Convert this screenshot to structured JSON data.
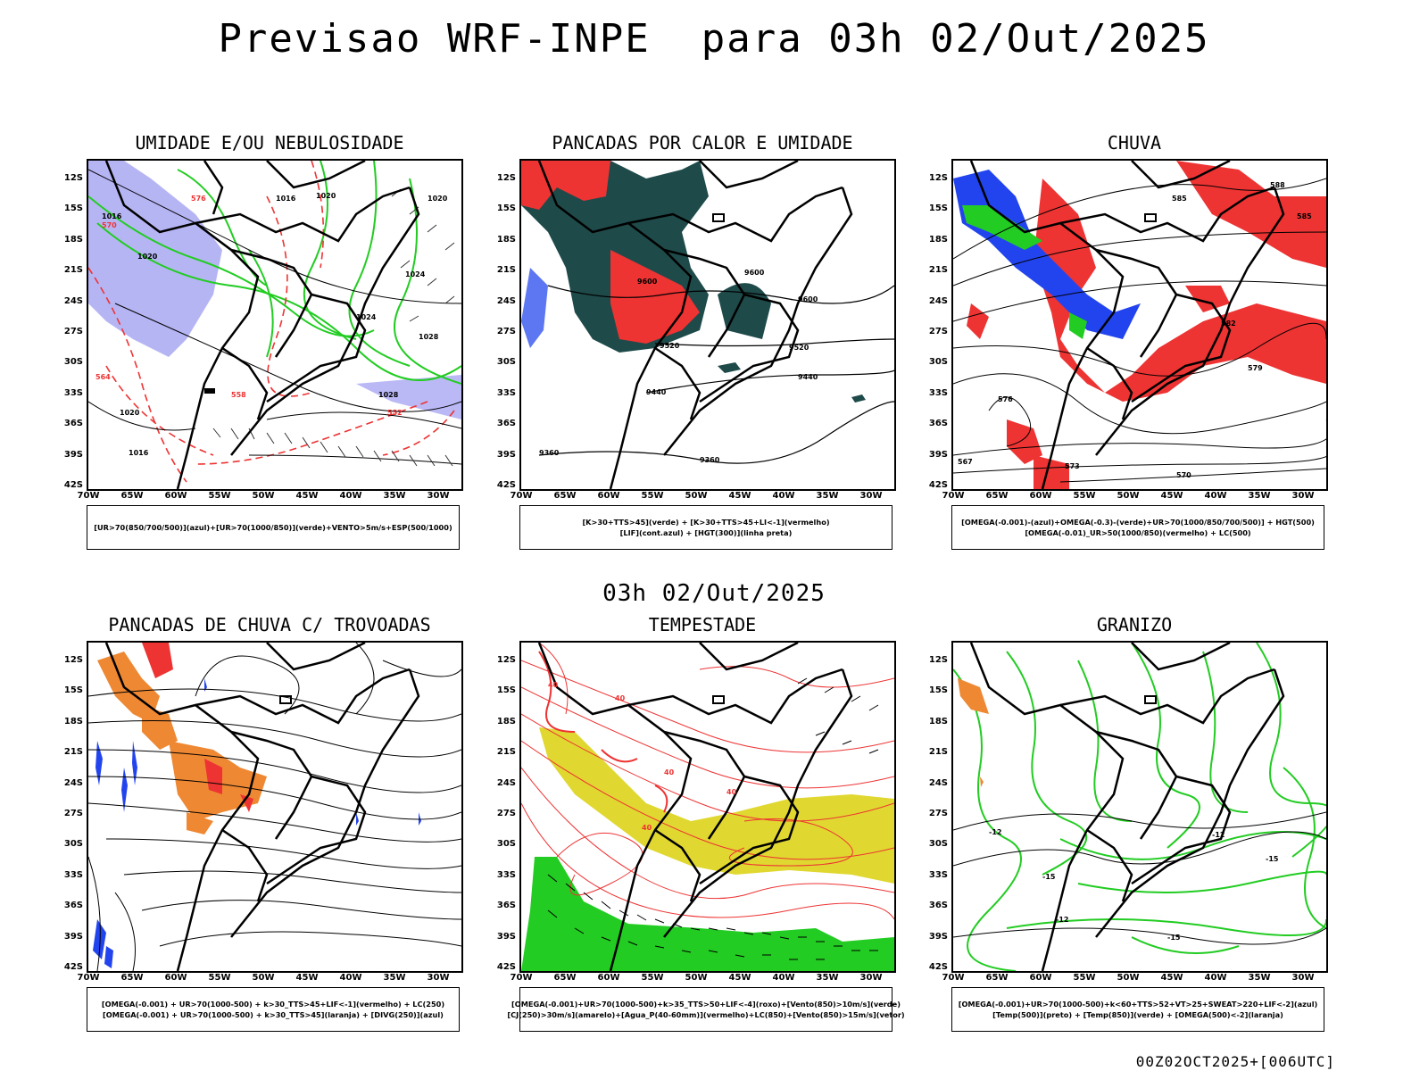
{
  "title": "Previsao WRF-INPE  para 03h 02/Out/2025",
  "mid_title": "03h 02/Out/2025",
  "footer": "00Z02OCT2025+[006UTC]",
  "lat_labels": [
    "12S",
    "15S",
    "18S",
    "21S",
    "24S",
    "27S",
    "30S",
    "33S",
    "36S",
    "39S",
    "42S"
  ],
  "lon_labels": [
    "70W",
    "65W",
    "60W",
    "55W",
    "50W",
    "45W",
    "40W",
    "35W",
    "30W"
  ],
  "colors": {
    "humidity_blue": "#a9a8f2",
    "green": "#22cc22",
    "red": "#ee3333",
    "dark_teal": "#1f4a4a",
    "blue": "#2244ee",
    "orange": "#ee8833",
    "yellow": "#e0d830"
  },
  "panels": [
    {
      "title": "UMIDADE E/OU NEBULOSIDADE",
      "legend": [
        "[UR>70(850/700/500)](azul)+[UR>70(1000/850)](verde)+VENTO>5m/s+ESP(500/1000)"
      ],
      "contour_labels": [
        "1016",
        "1020",
        "1020",
        "1024",
        "1024",
        "1028",
        "1028",
        "1020",
        "1016",
        "576",
        "570",
        "552",
        "558",
        "564",
        "1016",
        "1020"
      ]
    },
    {
      "title": "PANCADAS POR CALOR E UMIDADE",
      "legend": [
        "[K>30+TTS>45](verde) + [K>30+TTS>45+LI<-1](vermelho)",
        "[LIF](cont.azul) + [HGT(300)](linha preta)"
      ],
      "contour_labels": [
        "9600",
        "9600",
        "9520",
        "9520",
        "9440",
        "9440",
        "9360",
        "9360",
        "9600"
      ]
    },
    {
      "title": "CHUVA",
      "legend": [
        "[OMEGA(-0.001)-(azul)+OMEGA(-0.3)-(verde)+UR>70(1000/850/700/500)] + HGT(500)",
        "[OMEGA(-0.01)_UR>50(1000/850)(vermelho) + LC(500)"
      ],
      "contour_labels": [
        "585",
        "582",
        "579",
        "576",
        "573",
        "570",
        "567",
        "588",
        "585"
      ]
    },
    {
      "title": "PANCADAS DE CHUVA C/ TROVOADAS",
      "legend": [
        "[OMEGA(-0.001) + UR>70(1000-500) + k>30_TTS>45+LIF<-1](vermelho) + LC(250)",
        "[OMEGA(-0.001) + UR>70(1000-500) + k>30_TTS>45](laranja) + [DIVG(250)](azul)"
      ],
      "contour_labels": []
    },
    {
      "title": "TEMPESTADE",
      "legend": [
        "[OMEGA(-0.001)+UR>70(1000-500)+k>35_TTS>50+LIF<-4](roxo)+[Vento(850)>10m/s](verde)",
        "[CJ(250)>30m/s](amarelo)+[Agua_P(40-60mm)](vermelho)+LC(850)+[Vento(850)>15m/s](vetor)"
      ],
      "contour_labels": [
        "40",
        "40",
        "40",
        "40",
        "40"
      ]
    },
    {
      "title": "GRANIZO",
      "legend": [
        "[OMEGA(-0.001)+UR>70(1000-500)+k<60+TTS>52+VT>25+SWEAT>220+LIF<-2](azul)",
        "[Temp(500)](preto) + [Temp(850)](verde) + [OMEGA(500)<-2](laranja)"
      ],
      "contour_labels": [
        "-12",
        "-15",
        "-15",
        "-12",
        "-15",
        "-12"
      ]
    }
  ]
}
